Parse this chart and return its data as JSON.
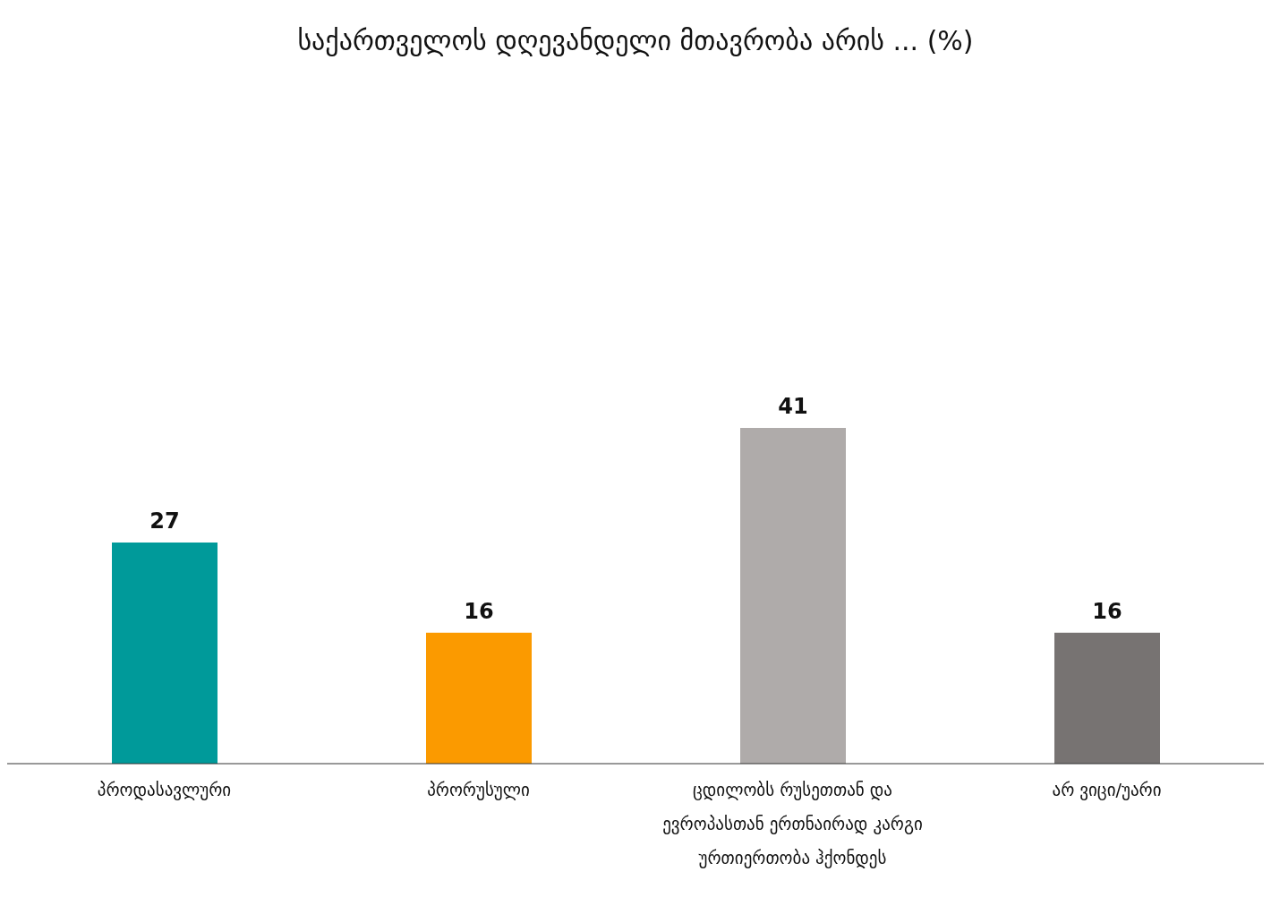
{
  "chart_data": {
    "type": "bar",
    "title": "საქართველოს დღევანდელი მთავრობა არის ... (%)",
    "categories": [
      "პროდასავლური",
      "პრორუსული",
      "ცდილობს რუსეთთან და ევროპასთან ერთნაირად კარგი ურთიერთობა ჰქონდეს",
      "არ ვიცი/უარი"
    ],
    "values": [
      27,
      16,
      41,
      16
    ],
    "colors": [
      "#009a9a",
      "#fb9a00",
      "#afabaa",
      "#777372"
    ],
    "data_labels": true,
    "grid": false,
    "legend": false
  }
}
